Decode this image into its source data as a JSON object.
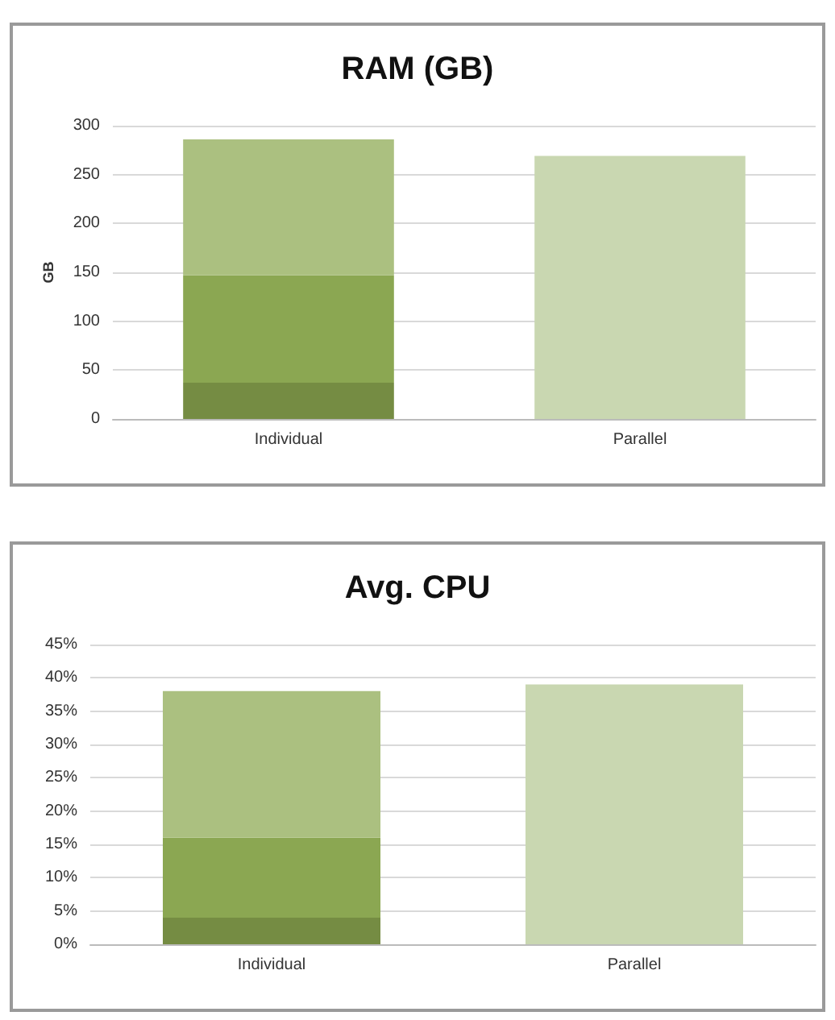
{
  "chart_data": [
    {
      "type": "bar",
      "title": "RAM (GB)",
      "ylabel": "GB",
      "categories": [
        "Individual",
        "Parallel"
      ],
      "stacked": true,
      "grid": "y",
      "ylim": [
        0,
        300
      ],
      "yticks": [
        0,
        50,
        100,
        150,
        200,
        250,
        300
      ],
      "series": [
        {
          "color": "#758c43",
          "values": [
            37,
            null
          ]
        },
        {
          "color": "#8ba752",
          "values": [
            110,
            null
          ]
        },
        {
          "color": "#abc080",
          "colors": [
            "#abc080",
            "#c9d7b1"
          ],
          "values": [
            139,
            269
          ]
        }
      ]
    },
    {
      "type": "bar",
      "title": "Avg. CPU",
      "categories": [
        "Individual",
        "Parallel"
      ],
      "stacked": true,
      "grid": "y",
      "ylim": [
        0,
        45
      ],
      "yticks": [
        {
          "value": 0,
          "label": "0%"
        },
        {
          "value": 5,
          "label": "5%"
        },
        {
          "value": 10,
          "label": "10%"
        },
        {
          "value": 15,
          "label": "15%"
        },
        {
          "value": 20,
          "label": "20%"
        },
        {
          "value": 25,
          "label": "25%"
        },
        {
          "value": 30,
          "label": "30%"
        },
        {
          "value": 35,
          "label": "35%"
        },
        {
          "value": 40,
          "label": "40%"
        },
        {
          "value": 45,
          "label": "45%"
        }
      ],
      "series": [
        {
          "color": "#758c43",
          "values": [
            4,
            null
          ]
        },
        {
          "color": "#8ba752",
          "values": [
            12,
            null
          ]
        },
        {
          "color": "#abc080",
          "colors": [
            "#abc080",
            "#c9d7b1"
          ],
          "values": [
            22,
            39
          ]
        }
      ]
    }
  ]
}
